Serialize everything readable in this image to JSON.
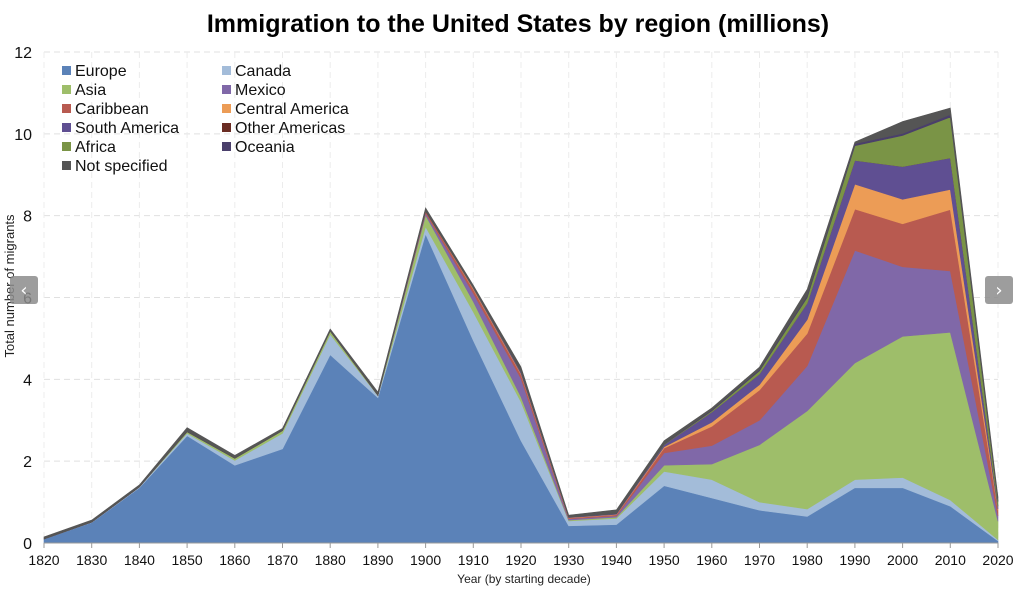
{
  "nav": {
    "prev_glyph": "‹",
    "next_glyph": "›",
    "prev_icon": "chevron-left-icon",
    "next_icon": "chevron-right-icon"
  },
  "chart_data": {
    "type": "area",
    "stacked": true,
    "title": "Immigration to the United States by region (millions)",
    "xlabel": "Year (by starting decade)",
    "ylabel": "Total number of migrants",
    "ylim": [
      0,
      12
    ],
    "yticks": [
      0,
      2,
      4,
      6,
      8,
      10,
      12
    ],
    "grid": true,
    "legend_position": "top-left",
    "x": [
      1820,
      1830,
      1840,
      1850,
      1860,
      1870,
      1880,
      1890,
      1900,
      1910,
      1920,
      1930,
      1940,
      1950,
      1960,
      1970,
      1980,
      1990,
      2000,
      2010,
      2020
    ],
    "series": [
      {
        "name": "Europe",
        "color": "#5b82b8",
        "values": [
          0.1,
          0.5,
          1.35,
          2.62,
          1.9,
          2.3,
          4.6,
          3.55,
          7.55,
          4.95,
          2.5,
          0.42,
          0.45,
          1.4,
          1.1,
          0.8,
          0.65,
          1.35,
          1.35,
          0.9,
          0.05
        ]
      },
      {
        "name": "Canada",
        "color": "#a3bcd9",
        "values": [
          0.0,
          0.01,
          0.02,
          0.06,
          0.12,
          0.38,
          0.5,
          0.05,
          0.18,
          0.7,
          0.95,
          0.12,
          0.15,
          0.35,
          0.45,
          0.2,
          0.18,
          0.2,
          0.25,
          0.15,
          0.03
        ]
      },
      {
        "name": "Asia",
        "color": "#9ebe6a",
        "values": [
          0.0,
          0.0,
          0.0,
          0.04,
          0.05,
          0.07,
          0.08,
          0.01,
          0.28,
          0.25,
          0.12,
          0.02,
          0.03,
          0.15,
          0.38,
          1.4,
          2.4,
          2.85,
          3.45,
          4.1,
          0.45
        ]
      },
      {
        "name": "Mexico",
        "color": "#8068a8",
        "values": [
          0.0,
          0.0,
          0.0,
          0.0,
          0.0,
          0.0,
          0.0,
          0.0,
          0.05,
          0.2,
          0.45,
          0.03,
          0.03,
          0.3,
          0.45,
          0.6,
          1.1,
          2.75,
          1.7,
          1.5,
          0.13
        ]
      },
      {
        "name": "Caribbean",
        "color": "#b85a50",
        "values": [
          0.0,
          0.0,
          0.0,
          0.0,
          0.0,
          0.0,
          0.0,
          0.0,
          0.05,
          0.1,
          0.1,
          0.02,
          0.03,
          0.12,
          0.47,
          0.74,
          0.79,
          1.01,
          1.05,
          1.5,
          0.14
        ]
      },
      {
        "name": "Central America",
        "color": "#ec9c56",
        "values": [
          0.0,
          0.0,
          0.0,
          0.0,
          0.0,
          0.0,
          0.0,
          0.0,
          0.0,
          0.02,
          0.02,
          0.01,
          0.01,
          0.03,
          0.1,
          0.13,
          0.34,
          0.61,
          0.6,
          0.49,
          0.03
        ]
      },
      {
        "name": "South America",
        "color": "#5f4f92",
        "values": [
          0.0,
          0.0,
          0.0,
          0.0,
          0.0,
          0.0,
          0.0,
          0.0,
          0.0,
          0.02,
          0.04,
          0.01,
          0.02,
          0.05,
          0.25,
          0.26,
          0.4,
          0.58,
          0.8,
          0.77,
          0.07
        ]
      },
      {
        "name": "Other Americas",
        "color": "#6a2c23",
        "values": [
          0.0,
          0.0,
          0.0,
          0.0,
          0.0,
          0.0,
          0.0,
          0.0,
          0.0,
          0.0,
          0.0,
          0.0,
          0.0,
          0.0,
          0.0,
          0.0,
          0.0,
          0.0,
          0.0,
          0.0,
          0.0
        ]
      },
      {
        "name": "Africa",
        "color": "#7a9446",
        "values": [
          0.0,
          0.0,
          0.0,
          0.0,
          0.0,
          0.0,
          0.0,
          0.0,
          0.0,
          0.01,
          0.01,
          0.0,
          0.0,
          0.01,
          0.03,
          0.08,
          0.14,
          0.36,
          0.76,
          1.0,
          0.11
        ]
      },
      {
        "name": "Oceania",
        "color": "#4a3f6b",
        "values": [
          0.0,
          0.0,
          0.0,
          0.0,
          0.0,
          0.0,
          0.0,
          0.0,
          0.0,
          0.01,
          0.01,
          0.0,
          0.0,
          0.01,
          0.02,
          0.03,
          0.04,
          0.05,
          0.05,
          0.06,
          0.01
        ]
      },
      {
        "name": "Not specified",
        "color": "#555555",
        "values": [
          0.05,
          0.05,
          0.05,
          0.1,
          0.07,
          0.05,
          0.05,
          0.08,
          0.08,
          0.04,
          0.1,
          0.05,
          0.09,
          0.08,
          0.05,
          0.06,
          0.16,
          0.04,
          0.29,
          0.16,
          0.1
        ]
      }
    ]
  }
}
